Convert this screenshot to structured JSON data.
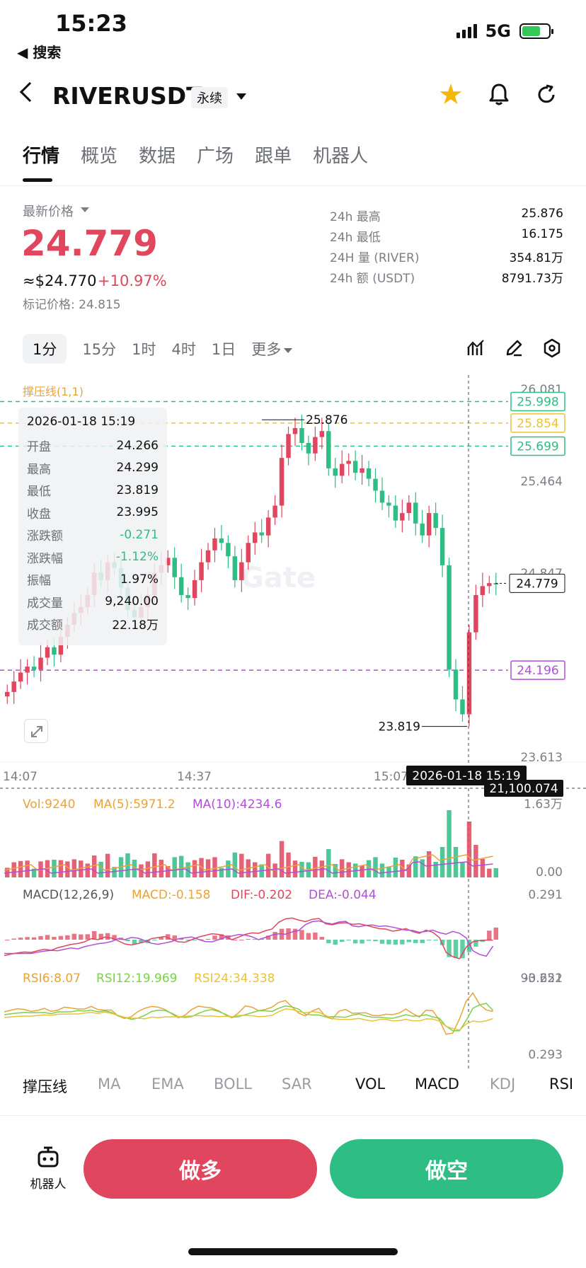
{
  "status": {
    "time": "15:23",
    "back": "◀ 搜索",
    "network": "5G"
  },
  "header": {
    "symbol": "RIVERUSDT",
    "contract_type": "永续"
  },
  "tabs": [
    "行情",
    "概览",
    "数据",
    "广场",
    "跟单",
    "机器人"
  ],
  "price": {
    "label": "最新价格",
    "last": "24.779",
    "usd": "≈$24.770",
    "change": "+10.97%",
    "mark": "标记价格: 24.815"
  },
  "stats": [
    {
      "k": "24h  最高",
      "v": "25.876"
    },
    {
      "k": "24h  最低",
      "v": "16.175"
    },
    {
      "k": "24H  量 (RIVER)",
      "v": "354.81万"
    },
    {
      "k": "24h  额 (USDT)",
      "v": "8791.73万"
    }
  ],
  "intervals": [
    "1分",
    "15分",
    "1时",
    "4时",
    "1日",
    "更多"
  ],
  "indicator_label": "撑压线(1,1)",
  "ohlc_tip": {
    "date": "2026-01-18 15:19",
    "rows": [
      {
        "k": "开盘",
        "v": "24.266"
      },
      {
        "k": "最高",
        "v": "24.299"
      },
      {
        "k": "最低",
        "v": "23.819"
      },
      {
        "k": "收盘",
        "v": "23.995"
      },
      {
        "k": "涨跌额",
        "v": "-0.271"
      },
      {
        "k": "涨跌幅",
        "v": "-1.12%"
      },
      {
        "k": "振幅",
        "v": "1.97%"
      },
      {
        "k": "成交量",
        "v": "9,240.00"
      },
      {
        "k": "成交额",
        "v": "22.18万"
      }
    ]
  },
  "chart_data": {
    "type": "candlestick",
    "y_ticks": [
      "26.081",
      "25.464",
      "24.847",
      "24.230",
      "23.613"
    ],
    "y_range": [
      23.613,
      26.081
    ],
    "x_ticks": [
      "14:07",
      "14:37",
      "15:07"
    ],
    "levels": [
      {
        "label": "25.998",
        "value": 25.998,
        "color": "#2ebd85"
      },
      {
        "label": "25.854",
        "value": 25.854,
        "color": "#e8c33a"
      },
      {
        "label": "25.699",
        "value": 25.699,
        "color": "#2ebd85"
      },
      {
        "label": "24.196",
        "value": 24.196,
        "color": "#b04fd6"
      }
    ],
    "last_price": "24.779",
    "high_marker": "25.876",
    "low_marker": "23.819",
    "crosshair_time": "2026-01-18 15:19",
    "crosshair_value": "21,100.074",
    "closes": [
      24.05,
      24.12,
      24.18,
      24.22,
      24.2,
      24.28,
      24.35,
      24.3,
      24.42,
      24.5,
      24.58,
      24.62,
      24.7,
      24.85,
      24.8,
      24.92,
      24.88,
      24.75,
      24.6,
      24.55,
      24.62,
      24.7,
      24.85,
      24.9,
      24.95,
      24.82,
      24.7,
      24.68,
      24.8,
      24.92,
      25.0,
      25.08,
      25.05,
      24.96,
      24.8,
      24.92,
      25.05,
      25.12,
      25.1,
      25.22,
      25.3,
      25.62,
      25.78,
      25.82,
      25.72,
      25.65,
      25.76,
      25.8,
      25.55,
      25.5,
      25.58,
      25.6,
      25.52,
      25.55,
      25.48,
      25.4,
      25.32,
      25.3,
      25.2,
      25.25,
      25.32,
      25.18,
      25.1,
      25.25,
      25.15,
      24.9,
      24.2,
      24.0,
      23.9,
      24.45,
      24.7,
      24.76,
      24.78,
      24.779
    ],
    "volume": {
      "label": "Vol:9240",
      "ma5": "MA(5):5971.2",
      "ma10": "MA(10):4234.6",
      "top": "1.63万",
      "bottom": "0.00"
    },
    "macd": {
      "label": "MACD(12,26,9)",
      "macd": "MACD:-0.158",
      "dif": "DIF:-0.202",
      "dea": "DEA:-0.044",
      "top": "0.291",
      "bottom": "-0.251"
    },
    "rsi": {
      "rsi6": "RSI6:8.07",
      "rsi12": "RSI12:19.969",
      "rsi24": "RSI24:34.338",
      "top": "93.622",
      "bottom": "0.293"
    }
  },
  "indicator_tabs": [
    "撑压线",
    "MA",
    "EMA",
    "BOLL",
    "SAR",
    "VOL",
    "MACD",
    "KDJ",
    "RSI"
  ],
  "bottom": {
    "robot": "机器人",
    "long": "做多",
    "short": "做空"
  },
  "colors": {
    "up": "#e0465e",
    "down": "#2ebd85"
  }
}
